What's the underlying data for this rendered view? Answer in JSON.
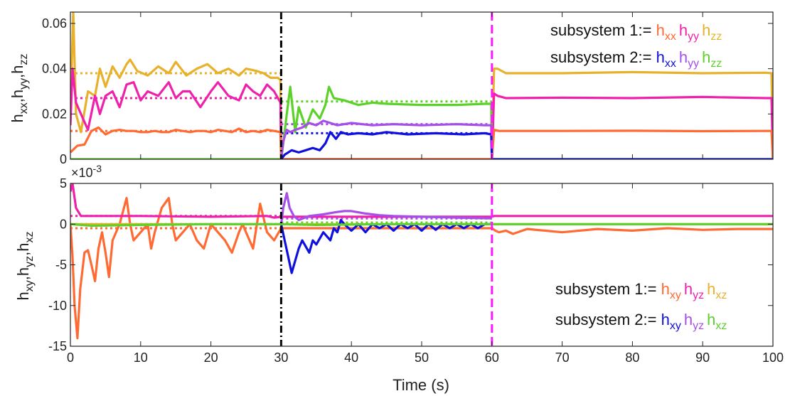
{
  "chart_data": [
    {
      "type": "line",
      "panel": "top",
      "ylabel": [
        "h",
        "xx",
        ",h",
        "yy",
        ",h",
        "zz"
      ],
      "xlim": [
        0,
        100
      ],
      "ylim": [
        0,
        0.065
      ],
      "yticks": [
        0,
        0.02,
        0.04,
        0.06
      ],
      "ytick_labels": [
        "0",
        "0.02",
        "0.04",
        "0.06"
      ],
      "vlines": [
        {
          "x": 30,
          "color": "#000000",
          "style": "dashdot"
        },
        {
          "x": 60,
          "color": "#ff19ff",
          "style": "dashed"
        }
      ],
      "legend": {
        "placement": "top-right",
        "rows": [
          {
            "prefix": "subsystem 1:=",
            "items": [
              {
                "base": "h",
                "sub": "xx",
                "color": "#ff6a33"
              },
              {
                "base": "h",
                "sub": "yy",
                "color": "#ee22aa"
              },
              {
                "base": "h",
                "sub": "zz",
                "color": "#e8b12c"
              }
            ]
          },
          {
            "prefix": "subsystem 2:=",
            "items": [
              {
                "base": "h",
                "sub": "xx",
                "color": "#1010dd"
              },
              {
                "base": "h",
                "sub": "yy",
                "color": "#a64fe8"
              },
              {
                "base": "h",
                "sub": "zz",
                "color": "#5cd12a"
              }
            ]
          }
        ]
      },
      "series": [
        {
          "color": "#e8b12c",
          "x": [
            0,
            0.4,
            0.8,
            1.5,
            2.5,
            3.5,
            4.2,
            5,
            6,
            7,
            8,
            8.5,
            9.5,
            11,
            12.5,
            14,
            15,
            16.5,
            18,
            19.5,
            21,
            22.5,
            24,
            25,
            26.5,
            27.5,
            28.5,
            29.5,
            29.9,
            30,
            60,
            60.3,
            60.8,
            62,
            70,
            80,
            90,
            99,
            99.8,
            100
          ],
          "y": [
            0.02,
            0.07,
            0.02,
            0.012,
            0.03,
            0.028,
            0.04,
            0.032,
            0.041,
            0.036,
            0.042,
            0.044,
            0.039,
            0.037,
            0.041,
            0.038,
            0.043,
            0.037,
            0.04,
            0.042,
            0.038,
            0.04,
            0.037,
            0.04,
            0.039,
            0.038,
            0.036,
            0.036,
            0.035,
            0,
            0,
            0.04,
            0.04,
            0.038,
            0.038,
            0.0385,
            0.038,
            0.0382,
            0.038,
            0
          ]
        },
        {
          "color": "#ee22aa",
          "x": [
            0,
            0.3,
            0.8,
            1.5,
            2.5,
            3.5,
            4.2,
            5,
            6,
            7,
            8,
            9,
            10,
            11,
            12.5,
            14,
            15,
            16,
            17,
            18.5,
            20,
            21,
            22.5,
            24,
            25,
            26,
            27,
            28,
            29,
            29.9,
            30,
            60,
            60.3,
            60.8,
            62,
            70,
            80,
            90,
            99,
            99.8,
            100
          ],
          "y": [
            0.015,
            0.04,
            0.025,
            0.02,
            0.013,
            0.028,
            0.02,
            0.028,
            0.03,
            0.023,
            0.033,
            0.034,
            0.026,
            0.03,
            0.028,
            0.034,
            0.027,
            0.03,
            0.03,
            0.023,
            0.03,
            0.034,
            0.028,
            0.026,
            0.033,
            0.03,
            0.028,
            0.033,
            0.03,
            0.025,
            0,
            0,
            0.029,
            0.028,
            0.027,
            0.0272,
            0.027,
            0.0275,
            0.027,
            0.027,
            0
          ]
        },
        {
          "color": "#ff6a33",
          "x": [
            0,
            1,
            2,
            3,
            4,
            5,
            6,
            7,
            8,
            9,
            10,
            11,
            12,
            13,
            14,
            15,
            16,
            17,
            18,
            19,
            20,
            21,
            22,
            23,
            24,
            25,
            26,
            27,
            28,
            29,
            29.9,
            30,
            60,
            60.3,
            61,
            62,
            70,
            80,
            90,
            99,
            99.8,
            100
          ],
          "y": [
            0.003,
            0.006,
            0.0065,
            0.0125,
            0.014,
            0.011,
            0.0125,
            0.013,
            0.0125,
            0.0125,
            0.012,
            0.012,
            0.0125,
            0.012,
            0.012,
            0.013,
            0.0125,
            0.012,
            0.0125,
            0.0125,
            0.012,
            0.013,
            0.0125,
            0.012,
            0.0135,
            0.012,
            0.0125,
            0.012,
            0.013,
            0.0125,
            0.012,
            0,
            0,
            0.013,
            0.0125,
            0.0125,
            0.0125,
            0.0126,
            0.0124,
            0.0125,
            0.0125,
            0
          ]
        },
        {
          "color": "#5cd12a",
          "x": [
            0,
            30,
            30.3,
            30.8,
            31.3,
            32,
            32.5,
            33.5,
            34.5,
            35.5,
            36.3,
            36.8,
            37.5,
            39,
            41,
            43,
            45,
            50,
            55,
            59,
            59.9,
            60,
            100
          ],
          "y": [
            0,
            0,
            0.007,
            0.02,
            0.032,
            0.012,
            0.023,
            0.014,
            0.022,
            0.018,
            0.024,
            0.032,
            0.027,
            0.026,
            0.024,
            0.025,
            0.0245,
            0.024,
            0.024,
            0.0245,
            0.0245,
            0,
            0
          ]
        },
        {
          "color": "#a64fe8",
          "x": [
            30,
            30.3,
            30.8,
            31.3,
            32,
            33,
            34,
            35,
            36,
            37,
            38,
            40,
            43,
            46,
            50,
            55,
            59,
            59.9,
            60
          ],
          "y": [
            0,
            0.008,
            0.013,
            0.012,
            0.013,
            0.014,
            0.016,
            0.015,
            0.017,
            0.016,
            0.015,
            0.016,
            0.015,
            0.0155,
            0.015,
            0.0155,
            0.015,
            0.015,
            0
          ]
        },
        {
          "color": "#1010dd",
          "x": [
            30,
            30.5,
            31.5,
            32.5,
            33.5,
            34.5,
            35.5,
            36.3,
            37,
            37.8,
            38.5,
            39.5,
            41,
            43,
            45,
            48,
            52,
            56,
            59,
            59.9,
            60,
            100
          ],
          "y": [
            0,
            0.002,
            0.004,
            0.003,
            0.004,
            0.005,
            0.004,
            0.007,
            0.012,
            0.009,
            0.012,
            0.011,
            0.0115,
            0.011,
            0.012,
            0.011,
            0.0115,
            0.011,
            0.0115,
            0.011,
            0,
            0
          ]
        }
      ],
      "reference_lines": [
        {
          "color": "#e8b12c",
          "x": [
            0,
            30
          ],
          "y": [
            0.038,
            0.038
          ]
        },
        {
          "color": "#ee22aa",
          "x": [
            0,
            30
          ],
          "y": [
            0.027,
            0.027
          ]
        },
        {
          "color": "#ff6a33",
          "x": [
            0,
            30
          ],
          "y": [
            0.0125,
            0.0125
          ]
        },
        {
          "color": "#5cd12a",
          "x": [
            30,
            60
          ],
          "y": [
            0.0255,
            0.0255
          ]
        },
        {
          "color": "#a64fe8",
          "x": [
            30,
            60
          ],
          "y": [
            0.0155,
            0.0155
          ]
        },
        {
          "color": "#1010dd",
          "x": [
            30,
            60
          ],
          "y": [
            0.0115,
            0.0115
          ]
        },
        {
          "color": "#1010dd",
          "x": [
            60,
            100
          ],
          "y": [
            0,
            0
          ]
        }
      ]
    },
    {
      "type": "line",
      "panel": "bottom",
      "ylabel": [
        "h",
        "xy",
        ",h",
        "yz",
        ",h",
        "xz"
      ],
      "exponent_label": "×10",
      "exponent_power": "-3",
      "xlabel": "Time (s)",
      "xlim": [
        0,
        100
      ],
      "ylim": [
        -15,
        5
      ],
      "xticks": [
        0,
        10,
        20,
        30,
        40,
        50,
        60,
        70,
        80,
        90,
        100
      ],
      "xtick_labels": [
        "0",
        "10",
        "20",
        "30",
        "40",
        "50",
        "60",
        "70",
        "80",
        "90",
        "100"
      ],
      "yticks": [
        -15,
        -10,
        -5,
        0,
        5
      ],
      "ytick_labels": [
        "-15",
        "-10",
        "-5",
        "0",
        "5"
      ],
      "vlines": [
        {
          "x": 30,
          "color": "#000000",
          "style": "dashdot"
        },
        {
          "x": 60,
          "color": "#ff19ff",
          "style": "dashed"
        }
      ],
      "legend": {
        "placement": "bottom-right",
        "rows": [
          {
            "prefix": "subsystem 1:=",
            "items": [
              {
                "base": "h",
                "sub": "xy",
                "color": "#ff6a33"
              },
              {
                "base": "h",
                "sub": "yz",
                "color": "#ee22aa"
              },
              {
                "base": "h",
                "sub": "xz",
                "color": "#e8b12c"
              }
            ]
          },
          {
            "prefix": "subsystem 2:=",
            "items": [
              {
                "base": "h",
                "sub": "xy",
                "color": "#1010dd"
              },
              {
                "base": "h",
                "sub": "yz",
                "color": "#a64fe8"
              },
              {
                "base": "h",
                "sub": "xz",
                "color": "#5cd12a"
              }
            ]
          }
        ]
      },
      "series": [
        {
          "color": "#ff6a33",
          "x": [
            0,
            0.3,
            0.6,
            1,
            1.4,
            2,
            2.5,
            3,
            3.5,
            4,
            4.5,
            5,
            5.5,
            6,
            7,
            8,
            8.5,
            9,
            10,
            11,
            11.5,
            12,
            13,
            14,
            14.5,
            15,
            16,
            17,
            18,
            19,
            20,
            21,
            22,
            23,
            24,
            24.5,
            25,
            26,
            27,
            28,
            29,
            30,
            60,
            60.5,
            61,
            62,
            63,
            65,
            70,
            75,
            80,
            85,
            90,
            95,
            100
          ],
          "y": [
            0,
            -4,
            -10,
            -14,
            -8,
            -3.5,
            -3.2,
            -5,
            -7,
            -3,
            -1,
            -3.5,
            -6.5,
            -2,
            0,
            3.2,
            0,
            -2,
            -1,
            0,
            -3,
            -1,
            2,
            3.2,
            0,
            -2,
            -1,
            0,
            -2,
            -3,
            0,
            -1,
            -2,
            -3.5,
            -1,
            0,
            -1,
            -3,
            2.5,
            -1,
            -2,
            -0.5,
            -0.5,
            -0.8,
            -1,
            -0.8,
            -1.2,
            -0.6,
            -1,
            -0.6,
            -0.8,
            -0.5,
            -0.7,
            -0.6,
            -0.6
          ]
        },
        {
          "color": "#ee22aa",
          "x": [
            0,
            0.3,
            0.8,
            1.5,
            3,
            10,
            20,
            28,
            29,
            30,
            60,
            60.3,
            61,
            70,
            80,
            90,
            100
          ],
          "y": [
            4,
            5,
            2,
            1,
            1,
            1,
            0.9,
            1,
            0.8,
            0.9,
            0.9,
            1,
            1,
            1,
            1,
            1,
            1
          ]
        },
        {
          "color": "#e8b12c",
          "x": [
            0,
            30,
            60,
            100
          ],
          "y": [
            0,
            0,
            0,
            0
          ]
        },
        {
          "color": "#1010dd",
          "x": [
            30,
            30.5,
            31,
            31.5,
            32.5,
            33,
            34,
            34.5,
            35,
            36,
            37,
            37.5,
            38,
            38.5,
            39,
            40,
            41,
            42,
            43,
            44,
            45,
            46,
            47,
            48,
            49,
            50,
            51,
            52,
            53,
            54,
            55,
            56,
            57,
            58,
            59,
            60
          ],
          "y": [
            0,
            -2,
            -4,
            -6,
            -3,
            -2,
            -3.5,
            -2,
            -2.5,
            -1,
            -2,
            -0.5,
            -1,
            0.5,
            0,
            -0.8,
            0,
            -1,
            0,
            -0.5,
            0,
            -0.8,
            0,
            -0.5,
            0,
            -0.8,
            0,
            -0.7,
            0,
            -0.5,
            0,
            -0.5,
            0,
            -0.5,
            0,
            0
          ]
        },
        {
          "color": "#a64fe8",
          "x": [
            30,
            30.3,
            30.8,
            31.2,
            31.8,
            32.5,
            34,
            36,
            38,
            39,
            40,
            42,
            44,
            46,
            50,
            55,
            60
          ],
          "y": [
            0,
            2,
            3.8,
            2,
            1,
            0.5,
            1,
            1.2,
            1.5,
            1.6,
            1.6,
            1.3,
            1.1,
            1,
            0.9,
            0.8,
            0.7
          ]
        },
        {
          "color": "#5cd12a",
          "x": [
            0,
            3,
            10,
            20,
            30,
            35,
            45,
            60,
            70,
            80,
            90,
            100
          ],
          "y": [
            0,
            -0.2,
            -0.1,
            0,
            0,
            -0.1,
            0,
            0,
            0,
            0,
            0,
            0
          ]
        }
      ],
      "reference_lines": [
        {
          "color": "#ff6a33",
          "x": [
            0,
            30
          ],
          "y": [
            -0.5,
            -0.5
          ]
        },
        {
          "color": "#ee22aa",
          "x": [
            0,
            30
          ],
          "y": [
            1,
            1
          ]
        },
        {
          "color": "#5cd12a",
          "x": [
            0,
            30
          ],
          "y": [
            0,
            0
          ]
        },
        {
          "color": "#a64fe8",
          "x": [
            30,
            60
          ],
          "y": [
            0.7,
            0.7
          ]
        },
        {
          "color": "#1010dd",
          "x": [
            30,
            60
          ],
          "y": [
            0,
            0
          ]
        },
        {
          "color": "#5cd12a",
          "x": [
            30,
            60
          ],
          "y": [
            0.2,
            0.2
          ]
        }
      ]
    }
  ]
}
